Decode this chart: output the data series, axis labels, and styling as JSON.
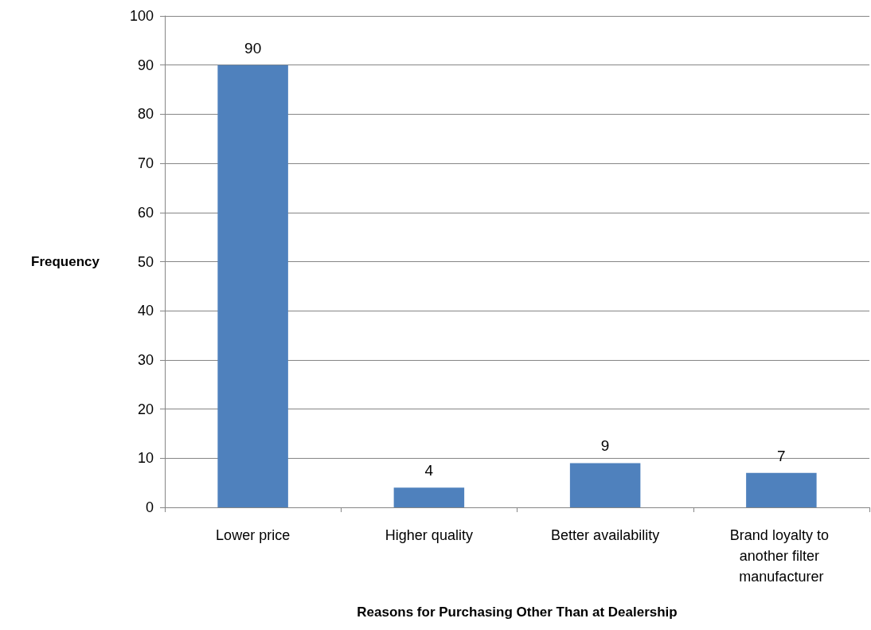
{
  "chart_data": {
    "type": "bar",
    "xlabel": "Reasons for Purchasing Other Than at Dealership",
    "ylabel": "Frequency",
    "categories": [
      "Lower price",
      "Higher quality",
      "Better availability",
      "Brand loyalty to another filter manufacturer"
    ],
    "values": [
      90,
      4,
      9,
      7
    ],
    "color": "#4f81bd",
    "ylim": [
      0,
      100
    ],
    "yticks": [
      0,
      10,
      20,
      30,
      40,
      50,
      60,
      70,
      80,
      90,
      100
    ],
    "grid": "y",
    "data_labels": true
  }
}
